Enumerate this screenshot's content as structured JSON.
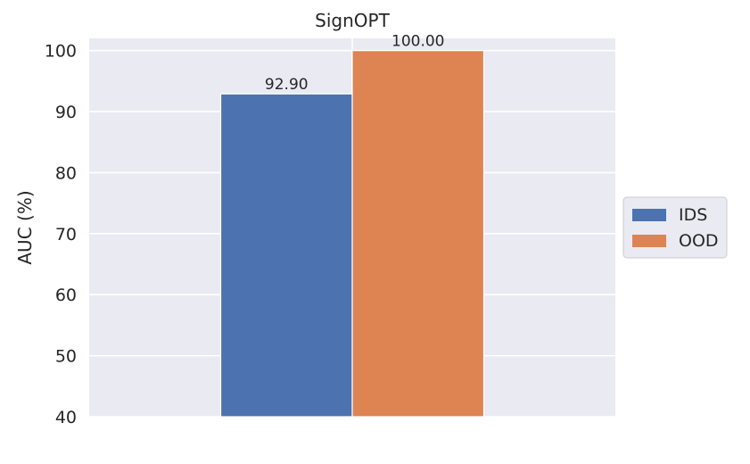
{
  "chart_data": {
    "type": "bar",
    "title": "SignOPT",
    "xlabel": "",
    "ylabel": "AUC (%)",
    "ylim": [
      40,
      102
    ],
    "yticks": [
      40,
      50,
      60,
      70,
      80,
      90,
      100
    ],
    "grid": true,
    "legend_position": "right",
    "categories": [
      ""
    ],
    "series": [
      {
        "name": "IDS",
        "values": [
          92.9
        ],
        "label": "92.90",
        "color": "#4c72b0"
      },
      {
        "name": "OOD",
        "values": [
          100.0
        ],
        "label": "100.00",
        "color": "#dd8452"
      }
    ],
    "background_color": "#eaeaf2",
    "grid_color": "#ffffff"
  }
}
